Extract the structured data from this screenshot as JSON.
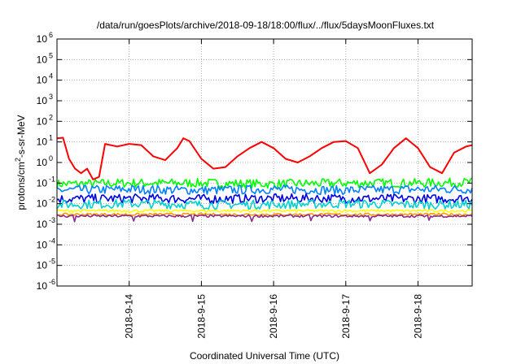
{
  "chart_data": {
    "type": "line",
    "title": "/data/run/goesPlots/archive/2018-09-18/18:00/flux/../flux/5daysMoonFluxes.txt",
    "xlabel": "Coordinated Universal Time (UTC)",
    "ylabel": {
      "prefix": "protons/cm",
      "sup": "2",
      "suffix": "-s-sr-MeV"
    },
    "yscale": "log",
    "ylim": [
      1e-06,
      1000000.0
    ],
    "y_ticks": [
      {
        "value": 1e-06,
        "exp": "-6"
      },
      {
        "value": 1e-05,
        "exp": "-5"
      },
      {
        "value": 0.0001,
        "exp": "-4"
      },
      {
        "value": 0.001,
        "exp": "-3"
      },
      {
        "value": 0.01,
        "exp": "-2"
      },
      {
        "value": 0.1,
        "exp": "-1"
      },
      {
        "value": 1,
        "exp": "0"
      },
      {
        "value": 10,
        "exp": "1"
      },
      {
        "value": 100,
        "exp": "2"
      },
      {
        "value": 1000,
        "exp": "3"
      },
      {
        "value": 10000,
        "exp": "4"
      },
      {
        "value": 100000,
        "exp": "5"
      },
      {
        "value": 1000000,
        "exp": "6"
      }
    ],
    "xlim": [
      "2018-09-13 00:00",
      "2018-09-18 18:00"
    ],
    "x_ticks": [
      "2018-9-14",
      "2018-9-15",
      "2018-9-16",
      "2018-9-17",
      "2018-9-18"
    ],
    "grid": true,
    "legend": "none",
    "series": [
      {
        "color": "#ff0000",
        "x": [
          "2018-09-13 00:00",
          "2018-09-13 02:00",
          "2018-09-13 04:00",
          "2018-09-13 06:00",
          "2018-09-13 08:00",
          "2018-09-13 10:00",
          "2018-09-13 12:00",
          "2018-09-13 14:00",
          "2018-09-13 16:00",
          "2018-09-13 20:00",
          "2018-09-14 00:00",
          "2018-09-14 04:00",
          "2018-09-14 08:00",
          "2018-09-14 12:00",
          "2018-09-14 16:00",
          "2018-09-14 18:00",
          "2018-09-14 20:00",
          "2018-09-15 00:00",
          "2018-09-15 04:00",
          "2018-09-15 08:00",
          "2018-09-15 12:00",
          "2018-09-15 16:00",
          "2018-09-15 20:00",
          "2018-09-16 00:00",
          "2018-09-16 04:00",
          "2018-09-16 08:00",
          "2018-09-16 12:00",
          "2018-09-16 16:00",
          "2018-09-16 20:00",
          "2018-09-17 00:00",
          "2018-09-17 04:00",
          "2018-09-17 08:00",
          "2018-09-17 12:00",
          "2018-09-17 16:00",
          "2018-09-17 20:00",
          "2018-09-18 00:00",
          "2018-09-18 04:00",
          "2018-09-18 08:00",
          "2018-09-18 12:00",
          "2018-09-18 16:00",
          "2018-09-18 18:00"
        ],
        "values": [
          15,
          16,
          1.5,
          0.5,
          0.3,
          0.5,
          0.15,
          0.2,
          8,
          6,
          8,
          7,
          2,
          1.3,
          5,
          15,
          11,
          1.5,
          0.5,
          0.6,
          2,
          5,
          10,
          5,
          1.5,
          1,
          2,
          5,
          10,
          11,
          5,
          0.3,
          0.8,
          5,
          15,
          5,
          0.6,
          0.3,
          3,
          6,
          7
        ]
      },
      {
        "color": "#00ff00",
        "x": [
          "2018-09-13 00:00",
          "2018-09-14 00:00",
          "2018-09-15 00:00",
          "2018-09-16 00:00",
          "2018-09-17 00:00",
          "2018-09-18 00:00",
          "2018-09-18 18:00"
        ],
        "values": [
          0.09,
          0.1,
          0.1,
          0.09,
          0.1,
          0.1,
          0.11
        ]
      },
      {
        "color": "#0080ff",
        "x": [
          "2018-09-13 00:00",
          "2018-09-14 00:00",
          "2018-09-15 00:00",
          "2018-09-16 00:00",
          "2018-09-17 00:00",
          "2018-09-18 00:00",
          "2018-09-18 18:00"
        ],
        "values": [
          0.045,
          0.05,
          0.045,
          0.05,
          0.045,
          0.05,
          0.05
        ]
      },
      {
        "color": "#0000dd",
        "x": [
          "2018-09-13 00:00",
          "2018-09-14 00:00",
          "2018-09-15 00:00",
          "2018-09-16 00:00",
          "2018-09-17 00:00",
          "2018-09-18 00:00",
          "2018-09-18 18:00"
        ],
        "values": [
          0.017,
          0.018,
          0.017,
          0.018,
          0.018,
          0.017,
          0.018
        ]
      },
      {
        "color": "#00d0d0",
        "x": [
          "2018-09-13 00:00",
          "2018-09-14 00:00",
          "2018-09-15 00:00",
          "2018-09-16 00:00",
          "2018-09-17 00:00",
          "2018-09-18 00:00",
          "2018-09-18 18:00"
        ],
        "values": [
          0.009,
          0.01,
          0.009,
          0.009,
          0.01,
          0.009,
          0.009
        ]
      },
      {
        "color": "#ffff00",
        "x": [
          "2018-09-13 00:00",
          "2018-09-14 00:00",
          "2018-09-15 00:00",
          "2018-09-16 00:00",
          "2018-09-17 00:00",
          "2018-09-18 00:00",
          "2018-09-18 18:00"
        ],
        "values": [
          0.0045,
          0.0045,
          0.0045,
          0.0045,
          0.0045,
          0.0045,
          0.0045
        ]
      },
      {
        "color": "#ff9900",
        "x": [
          "2018-09-13 00:00",
          "2018-09-14 00:00",
          "2018-09-15 00:00",
          "2018-09-16 00:00",
          "2018-09-17 00:00",
          "2018-09-18 00:00",
          "2018-09-18 18:00"
        ],
        "values": [
          0.003,
          0.003,
          0.003,
          0.003,
          0.003,
          0.003,
          0.003
        ]
      },
      {
        "color": "#8b2a8b",
        "x": [
          "2018-09-13 00:00",
          "2018-09-14 00:00",
          "2018-09-15 00:00",
          "2018-09-16 00:00",
          "2018-09-17 00:00",
          "2018-09-18 00:00",
          "2018-09-18 18:00"
        ],
        "values": [
          0.0025,
          0.0025,
          0.0025,
          0.0025,
          0.0025,
          0.0025,
          0.0025
        ]
      }
    ]
  }
}
